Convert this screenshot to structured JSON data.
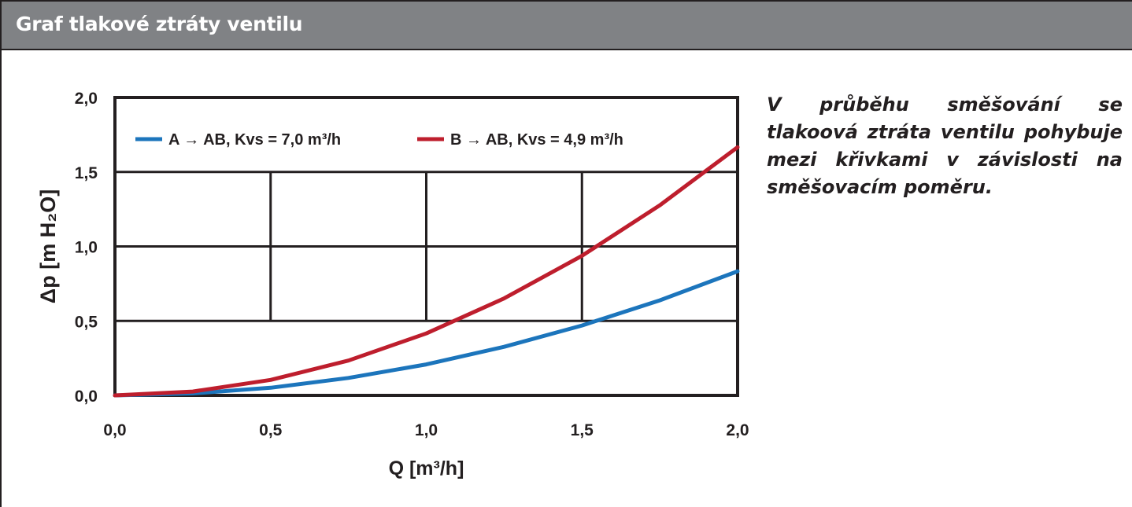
{
  "header": {
    "title": "Graf tlakové ztráty ventilu"
  },
  "note": {
    "text": "V průběhu směšování se tlakoová ztráta ventilu pohybuje mezi křivkami v závislosti na směšovacím poměru."
  },
  "chart_data": {
    "type": "line",
    "title": "",
    "xlabel": "Q [m³/h]",
    "ylabel": "Δp [m H₂O]",
    "xlim": [
      0,
      2
    ],
    "ylim": [
      0,
      2
    ],
    "x_ticks": [
      "0,0",
      "0,5",
      "1,0",
      "1,5",
      "2,0"
    ],
    "y_ticks": [
      "0,0",
      "0,5",
      "1,0",
      "1,5",
      "2,0"
    ],
    "grid": true,
    "legend_position": "top",
    "x": [
      0,
      0.25,
      0.5,
      0.75,
      1.0,
      1.25,
      1.5,
      1.75,
      2.0
    ],
    "series": [
      {
        "name": "A → AB, Kvs = 7,0 m³/h",
        "color": "#1c75bc",
        "values": [
          0,
          0.013,
          0.051,
          0.117,
          0.208,
          0.326,
          0.469,
          0.638,
          0.833
        ]
      },
      {
        "name": "B → AB, Kvs = 4,9 m³/h",
        "color": "#be1e2d",
        "values": [
          0,
          0.026,
          0.104,
          0.234,
          0.416,
          0.651,
          0.937,
          1.276,
          1.666
        ]
      }
    ]
  }
}
